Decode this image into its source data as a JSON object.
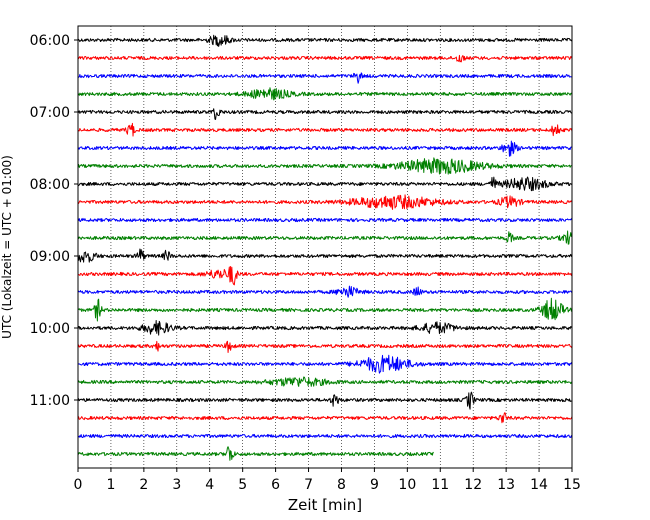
{
  "chart_data": {
    "type": "line",
    "title": "",
    "xlabel": "Zeit  [min]",
    "ylabel": "UTC (Lokalzeit = UTC + 01:00)",
    "xlim": [
      0,
      15
    ],
    "x_ticks": [
      "0",
      "1",
      "2",
      "3",
      "4",
      "5",
      "6",
      "7",
      "8",
      "9",
      "10",
      "11",
      "12",
      "13",
      "14",
      "15"
    ],
    "y_tick_labels": [
      "06:00",
      "07:00",
      "08:00",
      "09:00",
      "10:00",
      "11:00"
    ],
    "grid": "vertical dotted lines at each minute",
    "trace_interval_min": 15,
    "trace_colors": [
      "#000000",
      "#ff0000",
      "#0000ff",
      "#008000"
    ],
    "traces": [
      {
        "start": "06:00",
        "color": "#000000",
        "end_min": 15,
        "events": [
          [
            4.3,
            5,
            0.3
          ]
        ]
      },
      {
        "start": "06:15",
        "color": "#ff0000",
        "end_min": 15,
        "events": [
          [
            11.6,
            5,
            0.1
          ]
        ]
      },
      {
        "start": "06:30",
        "color": "#0000ff",
        "end_min": 15,
        "events": [
          [
            8.5,
            6,
            0.1
          ]
        ]
      },
      {
        "start": "06:45",
        "color": "#008000",
        "end_min": 15,
        "events": [
          [
            5.8,
            5,
            0.6
          ]
        ]
      },
      {
        "start": "07:00",
        "color": "#000000",
        "end_min": 15,
        "events": [
          [
            4.2,
            7,
            0.1
          ]
        ]
      },
      {
        "start": "07:15",
        "color": "#ff0000",
        "end_min": 15,
        "events": [
          [
            1.6,
            8,
            0.1
          ],
          [
            14.5,
            8,
            0.1
          ]
        ]
      },
      {
        "start": "07:30",
        "color": "#0000ff",
        "end_min": 15,
        "events": [
          [
            13.1,
            7,
            0.2
          ]
        ]
      },
      {
        "start": "07:45",
        "color": "#008000",
        "end_min": 15,
        "events": [
          [
            11.0,
            7,
            1.2
          ]
        ]
      },
      {
        "start": "08:00",
        "color": "#000000",
        "end_min": 15,
        "events": [
          [
            12.6,
            6,
            0.1
          ],
          [
            13.6,
            6,
            0.6
          ]
        ]
      },
      {
        "start": "08:15",
        "color": "#ff0000",
        "end_min": 15,
        "events": [
          [
            9.6,
            6,
            1.2
          ],
          [
            13.1,
            5,
            0.3
          ]
        ]
      },
      {
        "start": "08:30",
        "color": "#0000ff",
        "end_min": 15,
        "events": []
      },
      {
        "start": "08:45",
        "color": "#008000",
        "end_min": 15,
        "events": [
          [
            13.1,
            5,
            0.1
          ],
          [
            14.9,
            6,
            0.2
          ]
        ]
      },
      {
        "start": "09:00",
        "color": "#000000",
        "end_min": 15,
        "events": [
          [
            0.2,
            6,
            0.3
          ],
          [
            1.9,
            7,
            0.1
          ],
          [
            2.7,
            5,
            0.1
          ]
        ]
      },
      {
        "start": "09:15",
        "color": "#ff0000",
        "end_min": 15,
        "events": [
          [
            4.7,
            11,
            0.1
          ],
          [
            4.3,
            4,
            0.4
          ]
        ]
      },
      {
        "start": "09:30",
        "color": "#0000ff",
        "end_min": 15,
        "events": [
          [
            8.2,
            5,
            0.3
          ],
          [
            10.3,
            5,
            0.1
          ]
        ]
      },
      {
        "start": "09:45",
        "color": "#008000",
        "end_min": 15,
        "events": [
          [
            0.6,
            10,
            0.1
          ],
          [
            14.4,
            11,
            0.3
          ]
        ]
      },
      {
        "start": "10:00",
        "color": "#000000",
        "end_min": 15,
        "events": [
          [
            2.4,
            6,
            0.4
          ],
          [
            10.9,
            5,
            0.5
          ]
        ]
      },
      {
        "start": "10:15",
        "color": "#ff0000",
        "end_min": 15,
        "events": [
          [
            2.4,
            4,
            0.1
          ],
          [
            4.6,
            6,
            0.1
          ]
        ]
      },
      {
        "start": "10:30",
        "color": "#0000ff",
        "end_min": 15,
        "events": [
          [
            9.3,
            8,
            0.7
          ]
        ]
      },
      {
        "start": "10:45",
        "color": "#008000",
        "end_min": 15,
        "events": [
          [
            6.7,
            4,
            0.8
          ]
        ]
      },
      {
        "start": "11:00",
        "color": "#000000",
        "end_min": 15,
        "events": [
          [
            7.8,
            7,
            0.1
          ],
          [
            11.9,
            9,
            0.1
          ]
        ]
      },
      {
        "start": "11:15",
        "color": "#ff0000",
        "end_min": 15,
        "events": [
          [
            12.9,
            6,
            0.1
          ]
        ]
      },
      {
        "start": "11:30",
        "color": "#0000ff",
        "end_min": 15,
        "events": []
      },
      {
        "start": "11:45",
        "color": "#008000",
        "end_min": 10.8,
        "events": [
          [
            4.6,
            10,
            0.1
          ]
        ]
      }
    ]
  }
}
